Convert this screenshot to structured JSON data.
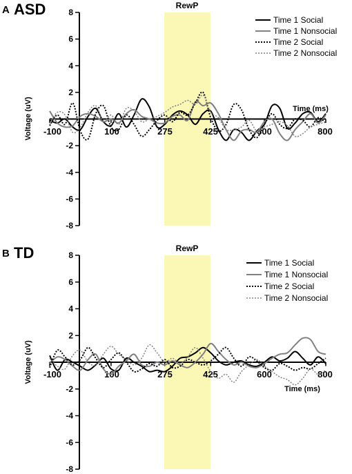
{
  "chart_data": [
    {
      "panel": "A",
      "title": "ASD",
      "type": "line",
      "xlabel": "Time (ms)",
      "ylabel": "Voltage (uV)",
      "xlim": [
        -100,
        800
      ],
      "ylim": [
        -8,
        8
      ],
      "x_ticks": [
        -100,
        100,
        275,
        425,
        600,
        800
      ],
      "y_ticks": [
        8,
        6,
        4,
        2,
        -2,
        -4,
        -6,
        -8
      ],
      "highlight": {
        "label": "RewP",
        "from": 275,
        "to": 425,
        "color": "#fbf7b4"
      },
      "legend_position": "top-right",
      "grid": false,
      "series": [
        {
          "name": "Time 1 Social",
          "color": "#000000",
          "style": "solid",
          "width": 2,
          "x": [
            -100,
            -75,
            -50,
            -25,
            0,
            25,
            50,
            75,
            100,
            125,
            150,
            175,
            200,
            225,
            250,
            275,
            300,
            325,
            350,
            375,
            400,
            425,
            450,
            475,
            500,
            525,
            550,
            575,
            600,
            625,
            650,
            675,
            700,
            725,
            750,
            775,
            800
          ],
          "y": [
            -0.1,
            -0.3,
            0.0,
            -0.6,
            -0.8,
            0.2,
            0.8,
            -0.2,
            -0.5,
            0.4,
            -0.6,
            0.3,
            1.5,
            0.9,
            -0.6,
            -0.4,
            0.3,
            0.6,
            0.3,
            -0.4,
            0.4,
            0.6,
            -0.8,
            -1.6,
            -0.8,
            -1.0,
            -1.6,
            -0.9,
            -0.4,
            1.0,
            0.8,
            -0.7,
            -0.3,
            0.4,
            0.5,
            -0.2,
            0.4
          ]
        },
        {
          "name": "Time 1 Nonsocial",
          "color": "#808080",
          "style": "solid",
          "width": 2,
          "x": [
            -100,
            -75,
            -50,
            -25,
            0,
            25,
            50,
            75,
            100,
            125,
            150,
            175,
            200,
            225,
            250,
            275,
            300,
            325,
            350,
            375,
            400,
            425,
            450,
            475,
            500,
            525,
            550,
            575,
            600,
            625,
            650,
            675,
            700,
            725,
            750,
            775,
            800
          ],
          "y": [
            0.6,
            -0.3,
            -0.6,
            -0.5,
            0.2,
            0.4,
            0.2,
            -0.2,
            0.0,
            -0.3,
            0.4,
            0.7,
            0.2,
            0.0,
            -0.3,
            -0.3,
            0.2,
            0.3,
            -0.1,
            1.3,
            1.0,
            1.2,
            0.4,
            -0.8,
            -1.6,
            -0.9,
            -0.8,
            -1.0,
            -0.2,
            0.0,
            -1.1,
            -1.6,
            -0.8,
            -0.2,
            0.4,
            -0.3,
            0.3
          ]
        },
        {
          "name": "Time 2 Social",
          "color": "#000000",
          "style": "dotted",
          "width": 2,
          "x": [
            -100,
            -75,
            -50,
            -25,
            0,
            25,
            50,
            75,
            100,
            125,
            150,
            175,
            200,
            225,
            250,
            275,
            300,
            325,
            350,
            375,
            400,
            425,
            450,
            475,
            500,
            525,
            550,
            575,
            600,
            625,
            650,
            675,
            700,
            725,
            750,
            775,
            800
          ],
          "y": [
            -0.5,
            0.3,
            -0.4,
            1.2,
            -0.9,
            -1.5,
            0.4,
            1.0,
            -0.6,
            -0.8,
            0.3,
            -0.4,
            -1.3,
            -0.8,
            -0.1,
            0.3,
            -0.2,
            0.5,
            0.3,
            1.2,
            2.0,
            0.1,
            -0.9,
            -0.4,
            1.1,
            0.7,
            -0.8,
            -1.4,
            -0.4,
            0.4,
            -0.4,
            -0.7,
            0.0,
            -0.1,
            -0.6,
            0.1,
            -0.3
          ]
        },
        {
          "name": "Time 2 Nonsocial",
          "color": "#808080",
          "style": "dotted",
          "width": 1.5,
          "x": [
            -100,
            -75,
            -50,
            -25,
            0,
            25,
            50,
            75,
            100,
            125,
            150,
            175,
            200,
            225,
            250,
            275,
            300,
            325,
            350,
            375,
            400,
            425,
            450,
            475,
            500,
            525,
            550,
            575,
            600,
            625,
            650,
            675,
            700,
            725,
            750,
            775,
            800
          ],
          "y": [
            -0.4,
            0.5,
            0.3,
            -1.0,
            -0.6,
            0.5,
            1.0,
            -0.2,
            0.3,
            -0.4,
            0.8,
            0.6,
            -0.2,
            0.0,
            0.2,
            0.5,
            0.9,
            1.1,
            1.4,
            1.1,
            1.8,
            0.5,
            0.1,
            -0.8,
            -0.8,
            -0.6,
            -0.1,
            -0.9,
            -0.6,
            -0.4,
            -0.2,
            -0.5,
            -1.3,
            -1.1,
            -0.6,
            -0.4,
            -0.2
          ]
        }
      ]
    },
    {
      "panel": "B",
      "title": "TD",
      "type": "line",
      "xlabel": "Time (ms)",
      "ylabel": "Voltage (uV)",
      "xlim": [
        -100,
        800
      ],
      "ylim": [
        -8,
        8
      ],
      "x_ticks": [
        -100,
        100,
        275,
        425,
        600,
        800
      ],
      "y_ticks": [
        8,
        6,
        4,
        2,
        -2,
        -4,
        -6,
        -8
      ],
      "highlight": {
        "label": "RewP",
        "from": 275,
        "to": 425,
        "color": "#fbf7b4"
      },
      "legend_position": "top-right",
      "grid": false,
      "series": [
        {
          "name": "Time 1 Social",
          "color": "#000000",
          "style": "solid",
          "width": 2,
          "x": [
            -100,
            -75,
            -50,
            -25,
            0,
            25,
            50,
            75,
            100,
            125,
            150,
            175,
            200,
            225,
            250,
            275,
            300,
            325,
            350,
            375,
            400,
            425,
            450,
            475,
            500,
            525,
            550,
            575,
            600,
            625,
            650,
            675,
            700,
            725,
            750,
            775,
            800
          ],
          "y": [
            0.5,
            -0.6,
            0.2,
            0.0,
            -0.3,
            -0.6,
            -0.2,
            0.3,
            -0.5,
            -0.6,
            0.3,
            0.0,
            -0.3,
            -0.7,
            -0.6,
            -0.7,
            -0.3,
            0.3,
            0.4,
            0.7,
            1.1,
            0.7,
            0.1,
            -0.2,
            0.0,
            0.1,
            -0.2,
            -0.3,
            0.0,
            0.4,
            0.1,
            0.3,
            0.8,
            0.3,
            -0.2,
            0.4,
            -0.1
          ]
        },
        {
          "name": "Time 1 Nonsocial",
          "color": "#808080",
          "style": "solid",
          "width": 2,
          "x": [
            -100,
            -75,
            -50,
            -25,
            0,
            25,
            50,
            75,
            100,
            125,
            150,
            175,
            200,
            225,
            250,
            275,
            300,
            325,
            350,
            375,
            400,
            425,
            450,
            475,
            500,
            525,
            550,
            575,
            600,
            625,
            650,
            675,
            700,
            725,
            750,
            775,
            800
          ],
          "y": [
            -0.1,
            0.4,
            0.2,
            -0.3,
            -0.6,
            0.2,
            0.6,
            -0.5,
            -0.9,
            -0.3,
            0.1,
            0.6,
            -0.2,
            -0.3,
            0.0,
            -0.2,
            0.1,
            -0.2,
            -0.4,
            0.0,
            0.6,
            1.4,
            0.8,
            0.2,
            -0.2,
            0.0,
            -0.3,
            -0.4,
            -0.1,
            0.3,
            0.6,
            0.7,
            1.3,
            1.8,
            1.7,
            0.8,
            0.6
          ]
        },
        {
          "name": "Time 2 Social",
          "color": "#000000",
          "style": "dotted",
          "width": 2,
          "x": [
            -100,
            -75,
            -50,
            -25,
            0,
            25,
            50,
            75,
            100,
            125,
            150,
            175,
            200,
            225,
            250,
            275,
            300,
            325,
            350,
            375,
            400,
            425,
            450,
            475,
            500,
            525,
            550,
            575,
            600,
            625,
            650,
            675,
            700,
            725,
            750,
            775,
            800
          ],
          "y": [
            -0.4,
            0.9,
            0.4,
            -0.2,
            0.2,
            1.1,
            0.3,
            -0.4,
            0.2,
            0.7,
            0.0,
            -0.7,
            -0.5,
            -0.1,
            -0.3,
            0.2,
            -0.4,
            -0.3,
            0.2,
            0.0,
            -0.2,
            0.1,
            0.6,
            1.1,
            0.3,
            -0.3,
            0.4,
            0.1,
            -0.4,
            -0.6,
            -0.1,
            -0.3,
            -0.6,
            -0.4,
            -0.5,
            -0.1,
            0.3
          ]
        },
        {
          "name": "Time 2 Nonsocial",
          "color": "#808080",
          "style": "dotted",
          "width": 1.5,
          "x": [
            -100,
            -75,
            -50,
            -25,
            0,
            25,
            50,
            75,
            100,
            125,
            150,
            175,
            200,
            225,
            250,
            275,
            300,
            325,
            350,
            375,
            400,
            425,
            450,
            475,
            500,
            525,
            550,
            575,
            600,
            625,
            650,
            675,
            700,
            725,
            750,
            775,
            800
          ],
          "y": [
            0.3,
            -0.3,
            -0.5,
            0.5,
            0.9,
            0.0,
            -0.2,
            0.6,
            1.2,
            0.6,
            0.2,
            -0.2,
            0.3,
            1.3,
            0.7,
            0.0,
            0.3,
            -0.1,
            0.4,
            1.1,
            0.3,
            -0.7,
            -1.2,
            -0.9,
            -1.5,
            -0.7,
            -0.2,
            0.2,
            -0.3,
            -0.7,
            -1.1,
            -1.3,
            -1.7,
            -1.2,
            -0.5,
            -0.9,
            -0.6
          ]
        }
      ]
    }
  ]
}
